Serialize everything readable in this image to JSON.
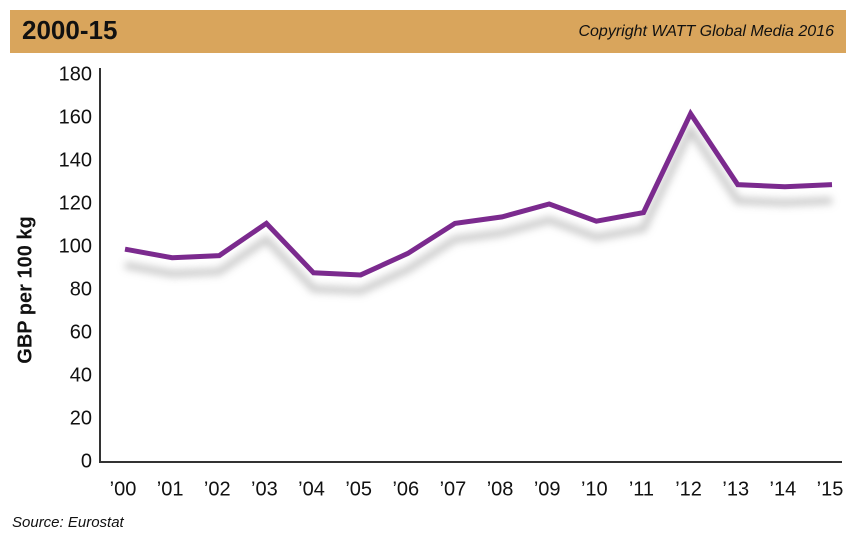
{
  "chart_data": {
    "type": "line",
    "title": "2000-15",
    "subtitle": "Copyright WATT Global Media 2016",
    "y_label": "GBP per 100 kg",
    "source": "Source: Eurostat",
    "categories": [
      "’00",
      "’01",
      "’02",
      "’03",
      "’04",
      "’05",
      "’06",
      "’07",
      "’08",
      "’09",
      "’10",
      "’11",
      "’12",
      "’13",
      "’14",
      "’15"
    ],
    "values": [
      99,
      95,
      96,
      111,
      88,
      87,
      97,
      111,
      114,
      120,
      112,
      116,
      162,
      129,
      128,
      129
    ],
    "color": "#7b2a8e",
    "ylim": [
      0,
      180
    ],
    "yticks": [
      0,
      20,
      40,
      60,
      80,
      100,
      120,
      140,
      160,
      180
    ],
    "grid": false
  }
}
